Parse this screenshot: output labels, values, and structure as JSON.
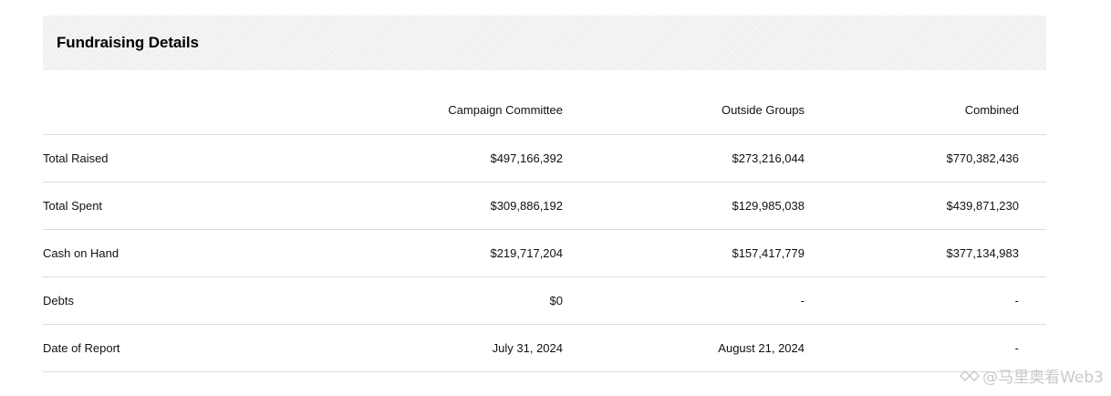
{
  "panel": {
    "title": "Fundraising Details"
  },
  "table": {
    "columns": [
      "",
      "Campaign Committee",
      "Outside Groups",
      "Combined"
    ],
    "rows": [
      {
        "label": "Total Raised",
        "campaign_committee": "$497,166,392",
        "outside_groups": "$273,216,044",
        "combined": "$770,382,436"
      },
      {
        "label": "Total Spent",
        "campaign_committee": "$309,886,192",
        "outside_groups": "$129,985,038",
        "combined": "$439,871,230"
      },
      {
        "label": "Cash on Hand",
        "campaign_committee": "$219,717,204",
        "outside_groups": "$157,417,779",
        "combined": "$377,134,983"
      },
      {
        "label": "Debts",
        "campaign_committee": "$0",
        "outside_groups": "-",
        "combined": "-"
      },
      {
        "label": "Date of Report",
        "campaign_committee": "July 31, 2024",
        "outside_groups": "August 21, 2024",
        "combined": "-"
      }
    ]
  },
  "watermark": {
    "text": "@马里奥看Web3",
    "icon": "logo-icon"
  }
}
